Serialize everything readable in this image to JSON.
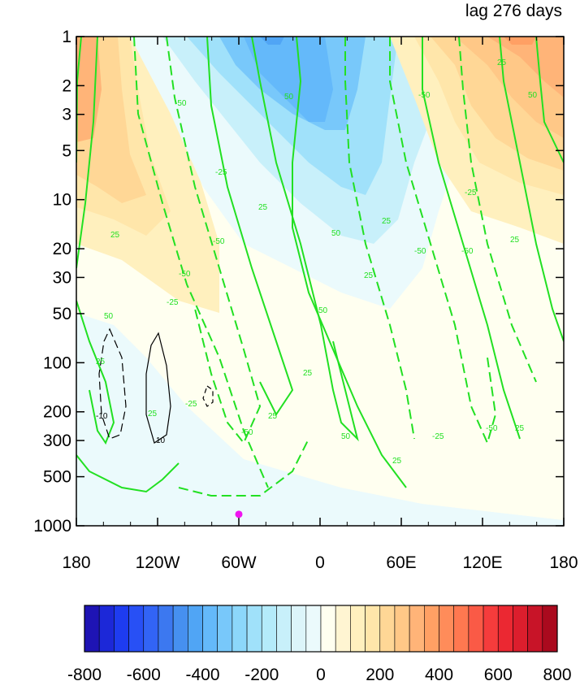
{
  "chart_data": {
    "type": "contour",
    "title_right": "lag 276 days",
    "x_ticks": [
      "180",
      "120W",
      "60W",
      "0",
      "60E",
      "120E",
      "180"
    ],
    "x_values": [
      -180,
      -120,
      -60,
      0,
      60,
      120,
      180
    ],
    "y_ticks": [
      "1",
      "2",
      "3",
      "5",
      "10",
      "20",
      "30",
      "50",
      "100",
      "200",
      "300",
      "500",
      "1000"
    ],
    "y_values": [
      1,
      2,
      3,
      5,
      10,
      20,
      30,
      50,
      100,
      200,
      300,
      500,
      1000
    ],
    "y_scale": "log",
    "y_reversed": true,
    "xlim": [
      -180,
      180
    ],
    "ylim": [
      1000,
      1
    ],
    "colorbar": {
      "labels": [
        "-800",
        "-600",
        "-400",
        "-200",
        "0",
        "200",
        "400",
        "600",
        "800"
      ],
      "levels": [
        -800,
        -750,
        -700,
        -650,
        -600,
        -550,
        -500,
        -450,
        -400,
        -350,
        -300,
        -250,
        -200,
        -150,
        -100,
        -50,
        0,
        50,
        100,
        150,
        200,
        250,
        300,
        350,
        400,
        450,
        500,
        550,
        600,
        650,
        700,
        750,
        800
      ],
      "colors": [
        "#1e14b4",
        "#1c28d8",
        "#1e3cf0",
        "#2850f5",
        "#3264f5",
        "#3c78f0",
        "#4690f0",
        "#50a5f5",
        "#64b9fa",
        "#78c8fa",
        "#8cd7fa",
        "#a0e1fa",
        "#b4ebfa",
        "#c8f0fa",
        "#dcf5fa",
        "#ebfafc",
        "#fffff0",
        "#fff5d2",
        "#fff0be",
        "#ffe6aa",
        "#ffd796",
        "#ffc887",
        "#ffb478",
        "#ffa064",
        "#ff8c5a",
        "#ff7850",
        "#fa5a46",
        "#f53c3c",
        "#eb2832",
        "#dc1e2d",
        "#c81428",
        "#aa0a1e"
      ]
    },
    "marker": {
      "lon": -60,
      "level": 850,
      "color": "#f014f0"
    },
    "contour_labels_green": [
      "50",
      "25",
      "-50",
      "-25"
    ],
    "contour_labels_black": [
      "10",
      "-10"
    ],
    "colors": {
      "positive_contour": "#22e022",
      "anomaly_contour": "#000000"
    }
  }
}
